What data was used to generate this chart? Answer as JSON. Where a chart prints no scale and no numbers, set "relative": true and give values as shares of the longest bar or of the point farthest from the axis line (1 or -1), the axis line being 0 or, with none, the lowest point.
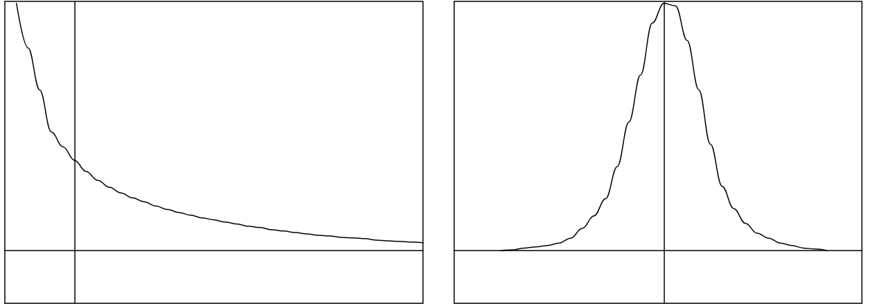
{
  "chart_data": [
    {
      "type": "line",
      "relative": true,
      "marker": "none",
      "line_style": "solid",
      "categories": [
        null,
        null,
        null,
        null,
        null,
        null,
        null,
        null,
        null,
        null,
        null,
        null,
        null,
        null,
        null,
        null,
        null,
        null,
        null,
        null,
        null,
        null,
        null,
        null,
        null,
        null,
        null,
        null,
        null,
        null,
        null,
        null,
        null,
        null,
        null,
        null,
        null
      ],
      "series": [
        {
          "color": "#000000",
          "values": [
            null,
            1.0,
            0.82,
            0.65,
            0.48,
            0.42,
            0.365,
            0.32,
            0.284,
            0.256,
            0.233,
            0.213,
            0.197,
            0.18,
            0.166,
            0.154,
            0.143,
            0.132,
            0.124,
            0.115,
            0.107,
            0.098,
            0.093,
            0.084,
            0.079,
            0.073,
            0.067,
            0.062,
            0.059,
            0.053,
            0.051,
            0.048,
            0.042,
            0.039,
            0.037,
            0.034,
            0.031
          ]
        }
      ]
    },
    {
      "type": "line",
      "relative": true,
      "marker": "none",
      "line_style": "solid",
      "categories": [
        null,
        null,
        null,
        null,
        null,
        null,
        null,
        null,
        null,
        null,
        null,
        null,
        null,
        null,
        null,
        null,
        null,
        null,
        null,
        null,
        null,
        null,
        null,
        null,
        null,
        null,
        null,
        null,
        null,
        null,
        null,
        null,
        null,
        null,
        null,
        null
      ],
      "series": [
        {
          "color": "#000000",
          "values": [
            null,
            null,
            null,
            null,
            0,
            0.003,
            0.01,
            0.015,
            0.02,
            0.03,
            0.05,
            0.09,
            0.14,
            0.21,
            0.34,
            0.52,
            0.71,
            0.92,
            1.0,
            0.99,
            0.85,
            0.65,
            0.43,
            0.26,
            0.17,
            0.11,
            0.07,
            0.05,
            0.03,
            0.02,
            0.01,
            0.006,
            0,
            null,
            null,
            null
          ]
        }
      ]
    }
  ]
}
